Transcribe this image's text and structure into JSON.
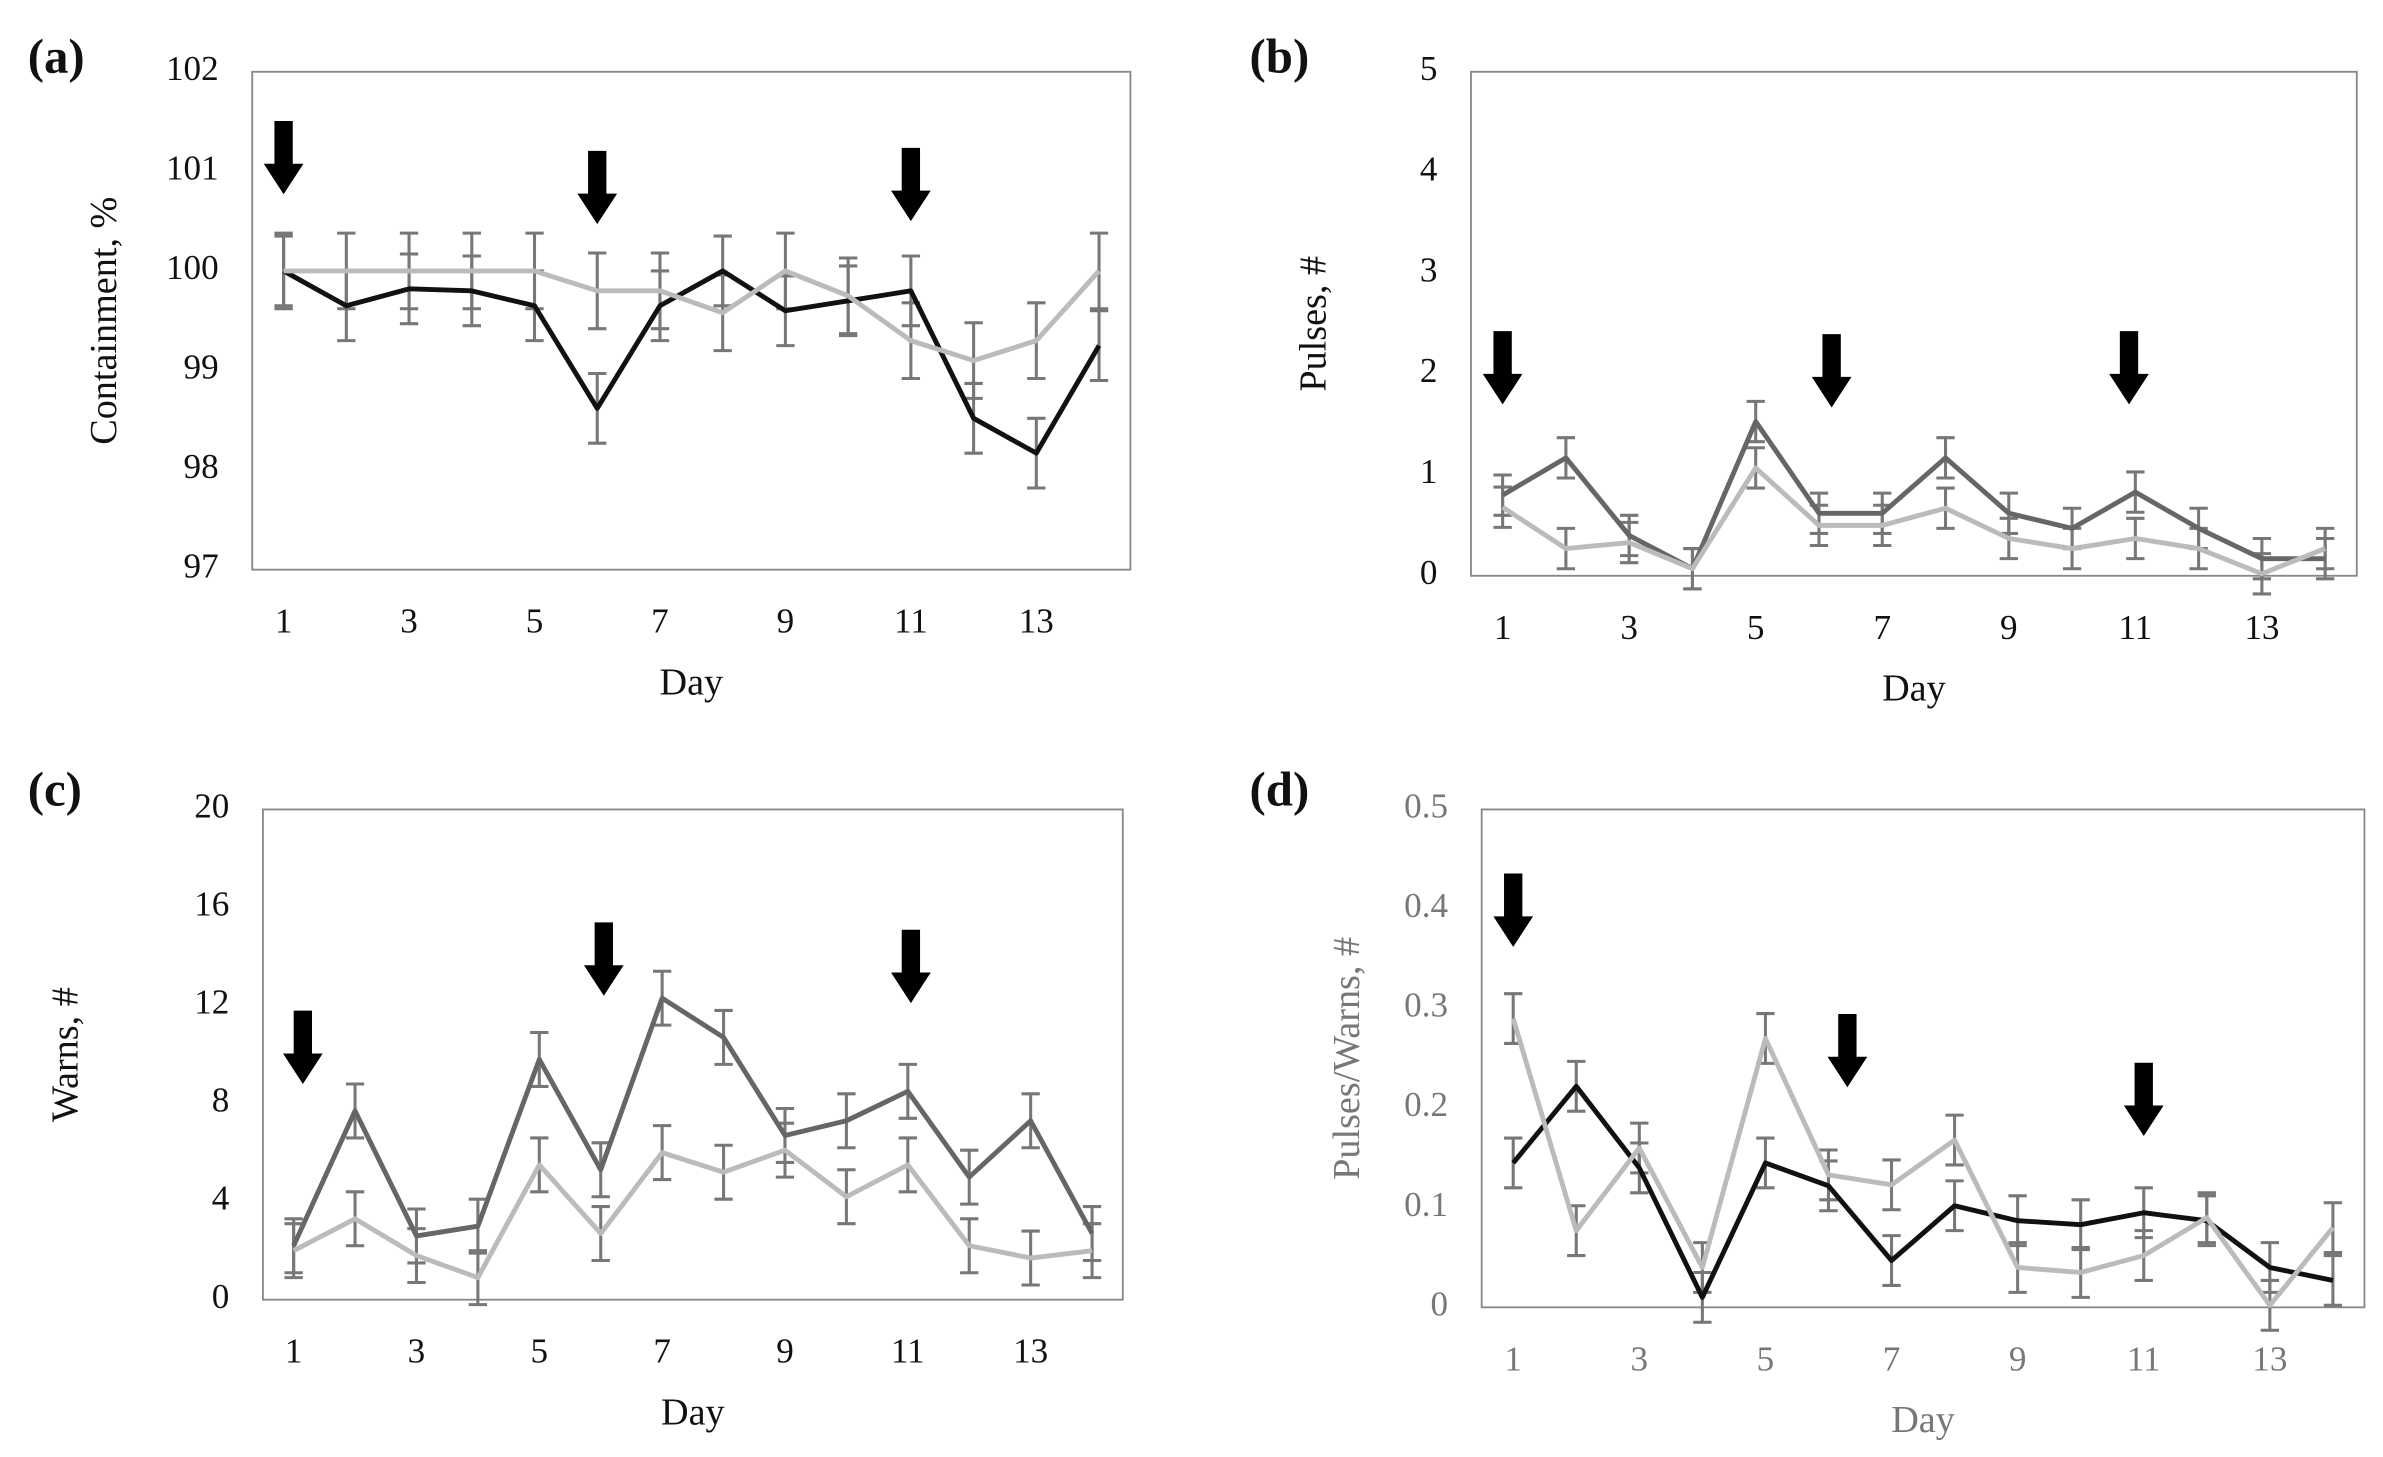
{
  "chart_data": [
    {
      "type": "line",
      "panel_label": "(a)",
      "ylabel": "Containment, %",
      "xlabel": "Day",
      "x": [
        1,
        2,
        3,
        4,
        5,
        6,
        7,
        8,
        9,
        10,
        11,
        12,
        13,
        14
      ],
      "xlim": [
        0.5,
        14.5
      ],
      "xticks": [
        1,
        3,
        5,
        7,
        9,
        11,
        13
      ],
      "ylim": [
        97,
        102
      ],
      "yticks": [
        97,
        98,
        99,
        100,
        101,
        102
      ],
      "series": [
        {
          "color": "#111111",
          "values": [
            100,
            99.65,
            99.82,
            99.8,
            99.65,
            98.62,
            99.65,
            100,
            99.6,
            99.7,
            99.8,
            98.52,
            98.17,
            99.25
          ],
          "errors": [
            0.35,
            0.35,
            0.35,
            0.35,
            0.35,
            0.35,
            0.35,
            0.35,
            0.35,
            0.35,
            0.35,
            0.35,
            0.35,
            0.35
          ]
        },
        {
          "color": "#bbbbbb",
          "values": [
            100,
            100,
            100,
            100,
            100,
            99.8,
            99.8,
            99.58,
            100,
            99.75,
            99.3,
            99.1,
            99.3,
            100
          ],
          "errors": [
            0.38,
            0.38,
            0.38,
            0.38,
            0.38,
            0.38,
            0.38,
            0.38,
            0.38,
            0.38,
            0.38,
            0.38,
            0.38,
            0.38
          ]
        }
      ],
      "arrows": [
        {
          "x": 1,
          "y": 100.77
        },
        {
          "x": 6,
          "y": 100.47
        },
        {
          "x": 11,
          "y": 100.5
        }
      ],
      "text_color": "#111111"
    },
    {
      "type": "line",
      "panel_label": "(b)",
      "ylabel": "Pulses, #",
      "xlabel": "Day",
      "x": [
        1,
        2,
        3,
        4,
        5,
        6,
        7,
        8,
        9,
        10,
        11,
        12,
        13,
        14
      ],
      "xlim": [
        0.5,
        14.5
      ],
      "xticks": [
        1,
        3,
        5,
        7,
        9,
        11,
        13
      ],
      "ylim": [
        0,
        5
      ],
      "yticks": [
        0,
        1,
        2,
        3,
        4,
        5
      ],
      "series": [
        {
          "color": "#666666",
          "values": [
            0.8,
            1.17,
            0.4,
            0.07,
            1.53,
            0.62,
            0.62,
            1.17,
            0.62,
            0.47,
            0.83,
            0.47,
            0.17,
            0.17
          ],
          "errors": [
            0.2,
            0.2,
            0.2,
            0.2,
            0.2,
            0.2,
            0.2,
            0.2,
            0.2,
            0.2,
            0.2,
            0.2,
            0.2,
            0.2
          ]
        },
        {
          "color": "#bbbbbb",
          "values": [
            0.68,
            0.27,
            0.33,
            0.07,
            1.07,
            0.5,
            0.5,
            0.67,
            0.37,
            0.27,
            0.37,
            0.27,
            0.02,
            0.27
          ],
          "errors": [
            0.2,
            0.2,
            0.2,
            0.2,
            0.2,
            0.2,
            0.2,
            0.2,
            0.2,
            0.2,
            0.2,
            0.2,
            0.2,
            0.2
          ]
        }
      ],
      "arrows": [
        {
          "x": 1,
          "y": 1.7
        },
        {
          "x": 6.2,
          "y": 1.67
        },
        {
          "x": 10.9,
          "y": 1.7
        }
      ],
      "text_color": "#111111"
    },
    {
      "type": "line",
      "panel_label": "(c)",
      "ylabel": "Warns, #",
      "xlabel": "Day",
      "x": [
        1,
        2,
        3,
        4,
        5,
        6,
        7,
        8,
        9,
        10,
        11,
        12,
        13,
        14
      ],
      "xlim": [
        0.5,
        14.5
      ],
      "xticks": [
        1,
        3,
        5,
        7,
        9,
        11,
        13
      ],
      "ylim": [
        0,
        20
      ],
      "yticks": [
        0,
        4,
        8,
        12,
        16,
        20
      ],
      "series": [
        {
          "color": "#666666",
          "values": [
            2.2,
            7.7,
            2.6,
            3,
            9.8,
            5.3,
            12.3,
            10.7,
            6.7,
            7.3,
            8.5,
            5,
            7.3,
            2.7
          ],
          "errors": [
            1.1,
            1.1,
            1.1,
            1.1,
            1.1,
            1.1,
            1.1,
            1.1,
            1.1,
            1.1,
            1.1,
            1.1,
            1.1,
            1.1
          ]
        },
        {
          "color": "#bbbbbb",
          "values": [
            2,
            3.3,
            1.8,
            0.9,
            5.5,
            2.7,
            6,
            5.2,
            6.1,
            4.2,
            5.5,
            2.2,
            1.7,
            2
          ],
          "errors": [
            1.1,
            1.1,
            1.1,
            1.1,
            1.1,
            1.1,
            1.1,
            1.1,
            1.1,
            1.1,
            1.1,
            1.1,
            1.1,
            1.1
          ]
        }
      ],
      "arrows": [
        {
          "x": 1.15,
          "y": 8.8
        },
        {
          "x": 6.05,
          "y": 12.4
        },
        {
          "x": 11.05,
          "y": 12.1
        }
      ],
      "text_color": "#111111"
    },
    {
      "type": "line",
      "panel_label": "(d)",
      "ylabel": "Pulses/Warns, #",
      "xlabel": "Day",
      "x": [
        1,
        2,
        3,
        4,
        5,
        6,
        7,
        8,
        9,
        10,
        11,
        12,
        13,
        14
      ],
      "xlim": [
        0.5,
        14.5
      ],
      "xticks": [
        1,
        3,
        5,
        7,
        9,
        11,
        13
      ],
      "ylim": [
        0,
        0.5
      ],
      "yticks": [
        0,
        0.1,
        0.2,
        0.3,
        0.4,
        0.5
      ],
      "series": [
        {
          "color": "#111111",
          "values": [
            0.145,
            0.222,
            0.14,
            0.01,
            0.145,
            0.122,
            0.047,
            0.102,
            0.087,
            0.083,
            0.095,
            0.087,
            0.04,
            0.027
          ],
          "errors": [
            0.025,
            0.025,
            0.025,
            0.025,
            0.025,
            0.025,
            0.025,
            0.025,
            0.025,
            0.025,
            0.025,
            0.025,
            0.025,
            0.025
          ]
        },
        {
          "color": "#bbbbbb",
          "values": [
            0.29,
            0.077,
            0.16,
            0.04,
            0.27,
            0.133,
            0.123,
            0.168,
            0.04,
            0.035,
            0.052,
            0.09,
            0.002,
            0.08
          ],
          "errors": [
            0.025,
            0.025,
            0.025,
            0.025,
            0.025,
            0.025,
            0.025,
            0.025,
            0.025,
            0.025,
            0.025,
            0.025,
            0.025,
            0.025
          ]
        }
      ],
      "arrows": [
        {
          "x": 1,
          "y": 0.362
        },
        {
          "x": 6.3,
          "y": 0.221
        },
        {
          "x": 11,
          "y": 0.172
        }
      ],
      "text_color": "#777777"
    }
  ]
}
